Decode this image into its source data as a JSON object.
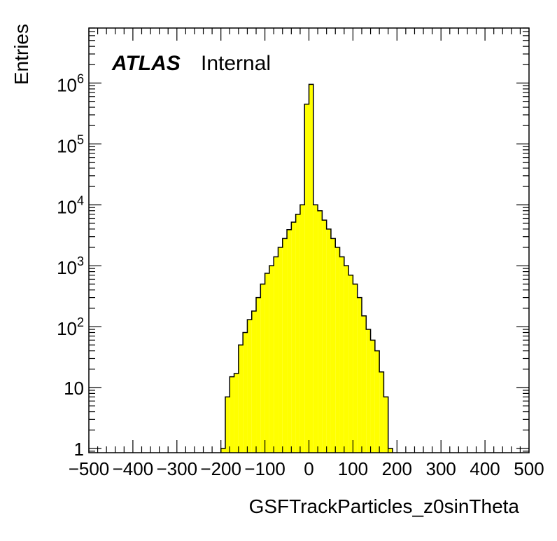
{
  "chart_data": {
    "type": "bar",
    "title": "",
    "xlabel": "GSFTrackParticles_z0sinTheta",
    "ylabel": "Entries",
    "xlim": [
      -500,
      500
    ],
    "ylim": [
      0.85,
      8000000
    ],
    "yscale": "log",
    "bin_width": 10,
    "fill_color": "#ffff00",
    "line_color": "#000000",
    "label": {
      "experiment": "ATLAS",
      "status": "Internal"
    },
    "x_ticks": [
      "−500",
      "−400",
      "−300",
      "−200",
      "−100",
      "0",
      "100",
      "200",
      "300",
      "400",
      "500"
    ],
    "x_tick_values": [
      -500,
      -400,
      -300,
      -200,
      -100,
      0,
      100,
      200,
      300,
      400,
      500
    ],
    "y_ticks": [
      {
        "value": 1,
        "base": "1",
        "exp": ""
      },
      {
        "value": 10,
        "base": "10",
        "exp": ""
      },
      {
        "value": 100,
        "base": "10",
        "exp": "2"
      },
      {
        "value": 1000,
        "base": "10",
        "exp": "3"
      },
      {
        "value": 10000,
        "base": "10",
        "exp": "4"
      },
      {
        "value": 100000,
        "base": "10",
        "exp": "5"
      },
      {
        "value": 1000000,
        "base": "10",
        "exp": "6"
      }
    ],
    "bins": [
      {
        "x0": -200,
        "x1": -190,
        "y": 1
      },
      {
        "x0": -190,
        "x1": -180,
        "y": 7
      },
      {
        "x0": -180,
        "x1": -170,
        "y": 15
      },
      {
        "x0": -170,
        "x1": -160,
        "y": 17
      },
      {
        "x0": -160,
        "x1": -150,
        "y": 50
      },
      {
        "x0": -150,
        "x1": -140,
        "y": 80
      },
      {
        "x0": -140,
        "x1": -130,
        "y": 130
      },
      {
        "x0": -130,
        "x1": -120,
        "y": 180
      },
      {
        "x0": -120,
        "x1": -110,
        "y": 300
      },
      {
        "x0": -110,
        "x1": -100,
        "y": 500
      },
      {
        "x0": -100,
        "x1": -90,
        "y": 750
      },
      {
        "x0": -90,
        "x1": -80,
        "y": 1000
      },
      {
        "x0": -80,
        "x1": -70,
        "y": 1400
      },
      {
        "x0": -70,
        "x1": -60,
        "y": 2000
      },
      {
        "x0": -60,
        "x1": -50,
        "y": 2800
      },
      {
        "x0": -50,
        "x1": -40,
        "y": 3900
      },
      {
        "x0": -40,
        "x1": -30,
        "y": 5200
      },
      {
        "x0": -30,
        "x1": -20,
        "y": 7000
      },
      {
        "x0": -20,
        "x1": -10,
        "y": 10000
      },
      {
        "x0": -10,
        "x1": 0,
        "y": 450000
      },
      {
        "x0": 0,
        "x1": 10,
        "y": 950000
      },
      {
        "x0": 10,
        "x1": 20,
        "y": 10000
      },
      {
        "x0": 20,
        "x1": 30,
        "y": 8000
      },
      {
        "x0": 30,
        "x1": 40,
        "y": 5600
      },
      {
        "x0": 40,
        "x1": 50,
        "y": 4000
      },
      {
        "x0": 50,
        "x1": 60,
        "y": 2800
      },
      {
        "x0": 60,
        "x1": 70,
        "y": 2000
      },
      {
        "x0": 70,
        "x1": 80,
        "y": 1400
      },
      {
        "x0": 80,
        "x1": 90,
        "y": 1000
      },
      {
        "x0": 90,
        "x1": 100,
        "y": 700
      },
      {
        "x0": 100,
        "x1": 110,
        "y": 500
      },
      {
        "x0": 110,
        "x1": 120,
        "y": 300
      },
      {
        "x0": 120,
        "x1": 130,
        "y": 150
      },
      {
        "x0": 130,
        "x1": 140,
        "y": 90
      },
      {
        "x0": 140,
        "x1": 150,
        "y": 60
      },
      {
        "x0": 150,
        "x1": 160,
        "y": 40
      },
      {
        "x0": 160,
        "x1": 170,
        "y": 18
      },
      {
        "x0": 170,
        "x1": 180,
        "y": 7
      },
      {
        "x0": 180,
        "x1": 190,
        "y": 1
      }
    ]
  }
}
